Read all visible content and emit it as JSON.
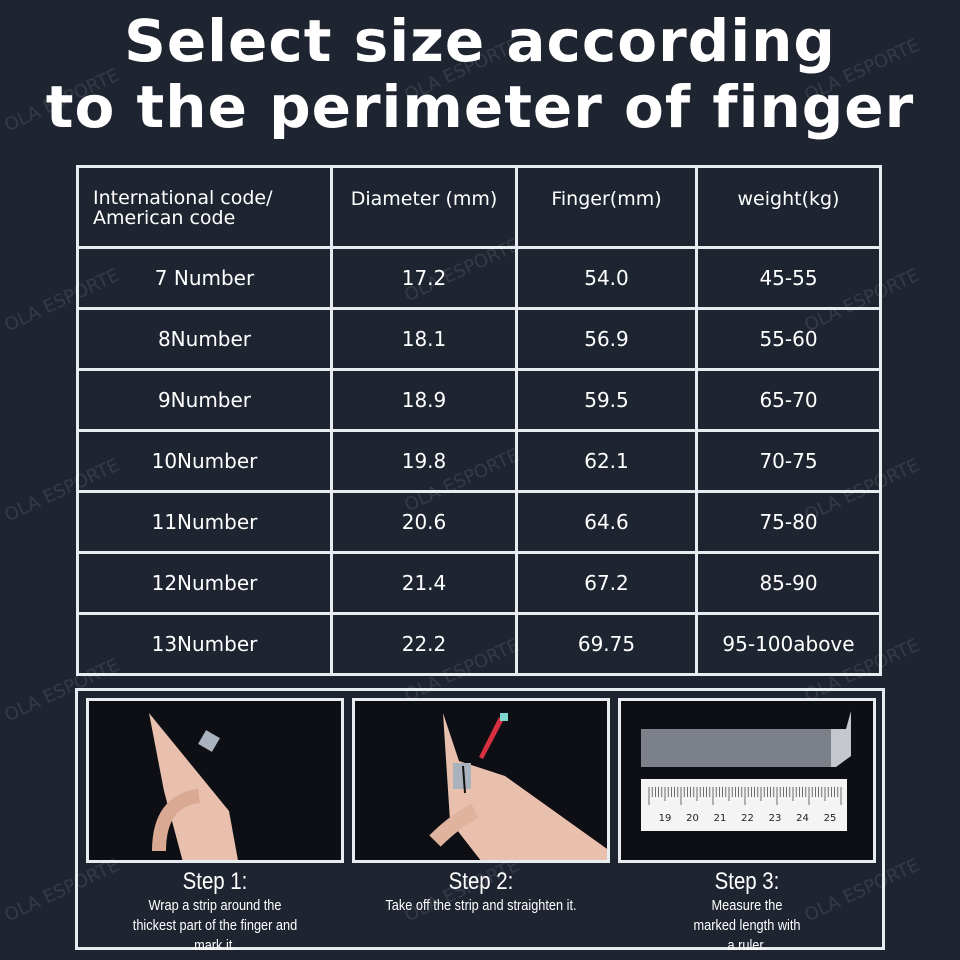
{
  "title": {
    "line1": "Select size according",
    "line2": "to the perimeter of finger"
  },
  "table": {
    "headers": [
      "International code/\nAmerican code",
      "Diameter (mm)",
      "Finger(mm)",
      "weight(kg)"
    ],
    "rows": [
      [
        "7 Number",
        "17.2",
        "54.0",
        "45-55"
      ],
      [
        "8Number",
        "18.1",
        "56.9",
        "55-60"
      ],
      [
        "9Number",
        "18.9",
        "59.5",
        "65-70"
      ],
      [
        "10Number",
        "19.8",
        "62.1",
        "70-75"
      ],
      [
        "11Number",
        "20.6",
        "64.6",
        "75-80"
      ],
      [
        "12Number",
        "21.4",
        "67.2",
        "85-90"
      ],
      [
        "13Number",
        "22.2",
        "69.75",
        "95-100above"
      ]
    ]
  },
  "steps": [
    {
      "title": "Step 1:",
      "desc": "Wrap a strip around the thickest part of the finger and mark it."
    },
    {
      "title": "Step 2:",
      "desc": "Take off the strip and straighten it."
    },
    {
      "title": "Step 3:",
      "desc": "Measure the marked length with a ruler.",
      "ruler_labels": [
        "19",
        "20",
        "21",
        "22",
        "23",
        "24",
        "25"
      ]
    }
  ],
  "watermark": "OLA ESPORTE"
}
